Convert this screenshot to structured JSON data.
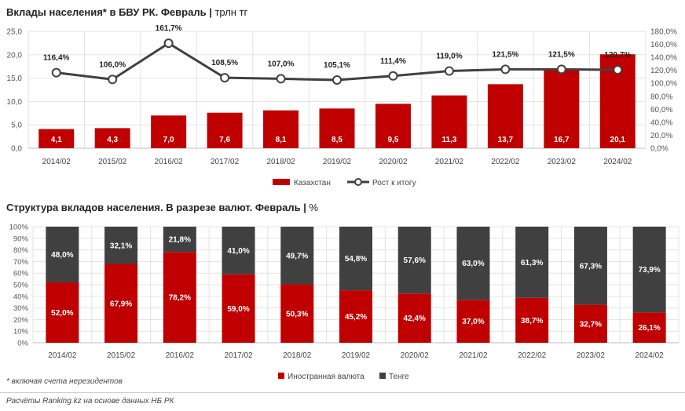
{
  "chart_data": [
    {
      "type": "bar+line",
      "title": "Вклады населения* в БВУ РК. Февраль",
      "unit": "трлн тг",
      "categories": [
        "2014/02",
        "2015/02",
        "2016/02",
        "2017/02",
        "2018/02",
        "2019/02",
        "2020/02",
        "2021/02",
        "2022/02",
        "2023/02",
        "2024/02"
      ],
      "bar_series": {
        "name": "Казахстан",
        "values": [
          4.1,
          4.3,
          7.0,
          7.6,
          8.1,
          8.5,
          9.5,
          11.3,
          13.7,
          16.7,
          20.1
        ],
        "labels": [
          "4,1",
          "4,3",
          "7,0",
          "7,6",
          "8,1",
          "8,5",
          "9,5",
          "11,3",
          "13,7",
          "16,7",
          "20,1"
        ],
        "color": "#c00000"
      },
      "line_series": {
        "name": "Рост к итогу",
        "values": [
          116.4,
          106.0,
          161.7,
          108.5,
          107.0,
          105.1,
          111.4,
          119.0,
          121.5,
          121.5,
          120.7
        ],
        "labels": [
          "116,4%",
          "106,0%",
          "161,7%",
          "108,5%",
          "107,0%",
          "105,1%",
          "111,4%",
          "119,0%",
          "121,5%",
          "121,5%",
          "120,7%"
        ],
        "color": "#404040"
      },
      "y_left": {
        "min": 0,
        "max": 25,
        "ticks": [
          "0,0",
          "5,0",
          "10,0",
          "15,0",
          "20,0",
          "25,0"
        ]
      },
      "y_right": {
        "min": 0,
        "max": 180,
        "ticks": [
          "0,0%",
          "20,0%",
          "40,0%",
          "60,0%",
          "80,0%",
          "100,0%",
          "120,0%",
          "140,0%",
          "160,0%",
          "180,0%"
        ]
      },
      "grid": true,
      "legend": "bottom"
    },
    {
      "type": "stacked-bar-100",
      "title": "Структура вкладов населения. В разрезе валют. Февраль",
      "unit": "%",
      "categories": [
        "2014/02",
        "2015/02",
        "2016/02",
        "2017/02",
        "2018/02",
        "2019/02",
        "2020/02",
        "2021/02",
        "2022/02",
        "2023/02",
        "2024/02"
      ],
      "series": [
        {
          "name": "Иностранная валюта",
          "color": "#c00000",
          "values": [
            52.0,
            67.9,
            78.2,
            59.0,
            50.3,
            45.2,
            42.4,
            37.0,
            38.7,
            32.7,
            26.1
          ],
          "labels": [
            "52,0%",
            "67,9%",
            "78,2%",
            "59,0%",
            "50,3%",
            "45,2%",
            "42,4%",
            "37,0%",
            "38,7%",
            "32,7%",
            "26,1%"
          ]
        },
        {
          "name": "Тенге",
          "color": "#404040",
          "values": [
            48.0,
            32.1,
            21.8,
            41.0,
            49.7,
            54.8,
            57.6,
            63.0,
            61.3,
            67.3,
            73.9
          ],
          "labels": [
            "48,0%",
            "32,1%",
            "21,8%",
            "41,0%",
            "49,7%",
            "54,8%",
            "57,6%",
            "63,0%",
            "61,3%",
            "67,3%",
            "73,9%"
          ]
        }
      ],
      "y_axis": {
        "min": 0,
        "max": 100,
        "ticks": [
          "0%",
          "10%",
          "20%",
          "30%",
          "40%",
          "50%",
          "60%",
          "70%",
          "80%",
          "90%",
          "100%"
        ]
      },
      "grid": true,
      "legend": "bottom"
    }
  ],
  "footnote": "* включая счета нерезидентов",
  "source": "Расчёты Ranking.kz на основе данных НБ РК"
}
